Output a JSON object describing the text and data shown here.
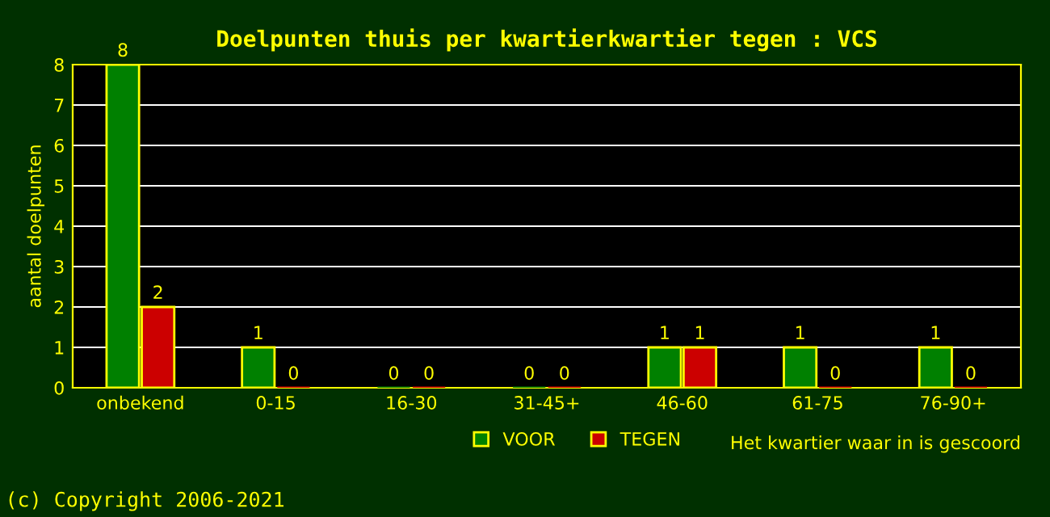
{
  "chart_data": {
    "type": "bar",
    "title": "Doelpunten thuis per kwartierkwartier tegen : VCS",
    "categories": [
      "onbekend",
      "0-15",
      "16-30",
      "31-45+",
      "46-60",
      "61-75",
      "76-90+"
    ],
    "series": [
      {
        "name": "VOOR",
        "color": "#008000",
        "values": [
          8,
          1,
          0,
          0,
          1,
          1,
          1
        ]
      },
      {
        "name": "TEGEN",
        "color": "#cc0000",
        "values": [
          2,
          0,
          0,
          0,
          1,
          0,
          0
        ]
      }
    ],
    "ylim": [
      0,
      8
    ],
    "yticks": [
      0,
      1,
      2,
      3,
      4,
      5,
      6,
      7,
      8
    ],
    "xlabel": "Het kwartier waar in is gescoord",
    "ylabel": "aantal doelpunten",
    "grid": "y",
    "legend": "bottom",
    "data_labels": true,
    "annotations": [
      "(c) Copyright 2006-2021"
    ]
  }
}
